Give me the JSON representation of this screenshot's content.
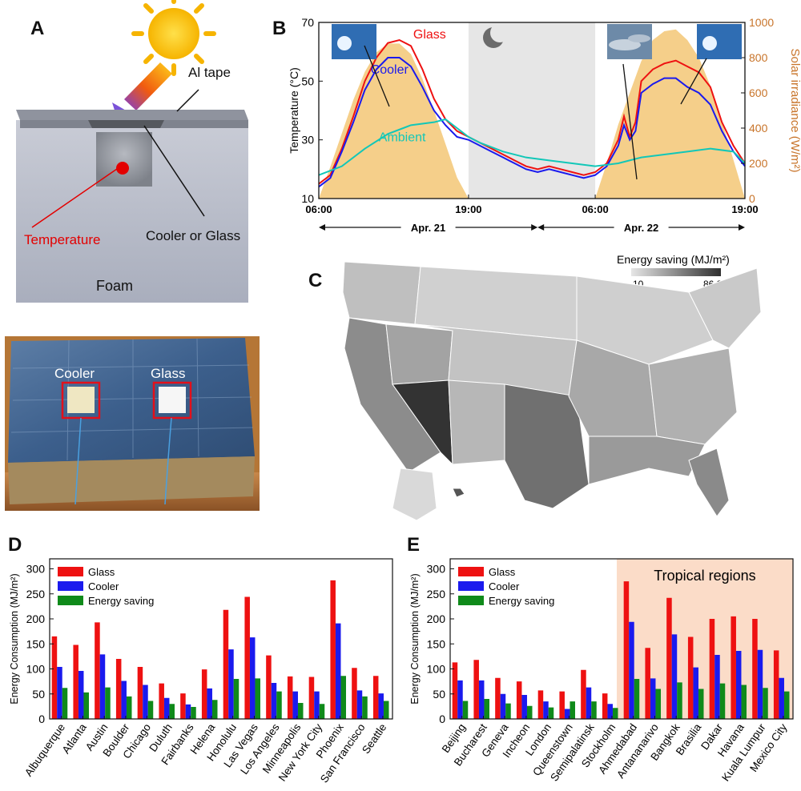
{
  "panel_letters": [
    "A",
    "B",
    "C",
    "D",
    "E"
  ],
  "panel_a": {
    "label_al_tape": "Al tape",
    "label_temperature": "Temperature",
    "label_cooler_or_glass": "Cooler or Glass",
    "label_foam": "Foam",
    "photo_label_cooler": "Cooler",
    "photo_label_glass": "Glass"
  },
  "colors": {
    "glass": "#ee1111",
    "cooler": "#1a1aee",
    "energy_saving": "#0f8a1a",
    "ambient": "#12c7b8",
    "irradiance": "#f5cf8a",
    "irradiance_axis": "#c8742a",
    "night": "#e6e6e6",
    "tropical": "#fbdcc8"
  },
  "chart_data": [
    {
      "type": "line",
      "panel": "B",
      "ylabel": "Temperature (°C)",
      "y2label": "Solar irradiance (W/m²)",
      "ylim": [
        10,
        70
      ],
      "yticks": [
        10,
        30,
        50,
        70
      ],
      "y2lim": [
        0,
        1000
      ],
      "y2ticks": [
        0,
        200,
        400,
        600,
        800,
        1000
      ],
      "xlim": [
        6,
        43
      ],
      "xticks": [
        {
          "x": 6,
          "label": "06:00"
        },
        {
          "x": 19,
          "label": "19:00"
        },
        {
          "x": 30,
          "label": "06:00"
        },
        {
          "x": 43,
          "label": "19:00"
        }
      ],
      "night_shading": [
        19,
        30
      ],
      "day_labels": [
        {
          "label": "Apr. 21",
          "from": 6,
          "to": 25
        },
        {
          "label": "Apr. 22",
          "from": 25,
          "to": 43
        }
      ],
      "series_labels": {
        "glass": "Glass",
        "cooler": "Cooler",
        "ambient": "Ambient"
      },
      "series": [
        {
          "name": "Glass",
          "x": [
            6,
            7,
            8,
            9,
            10,
            11,
            12,
            13,
            14,
            15,
            16,
            17,
            18,
            19,
            20,
            21,
            22,
            23,
            24,
            25,
            26,
            27,
            28,
            29,
            30,
            31,
            32,
            32.5,
            33,
            33.5,
            34,
            35,
            36,
            37,
            38,
            39,
            40,
            41,
            42,
            43
          ],
          "y": [
            15,
            18,
            27,
            38,
            50,
            58,
            63,
            64,
            62,
            54,
            44,
            37,
            33,
            31,
            29,
            27,
            25,
            23,
            21,
            20,
            21,
            20,
            19,
            18,
            19,
            22,
            30,
            38,
            31,
            36,
            50,
            54,
            56,
            57,
            55,
            53,
            48,
            36,
            28,
            22
          ]
        },
        {
          "name": "Cooler",
          "x": [
            6,
            7,
            8,
            9,
            10,
            11,
            12,
            13,
            14,
            15,
            16,
            17,
            18,
            19,
            20,
            21,
            22,
            23,
            24,
            25,
            26,
            27,
            28,
            29,
            30,
            31,
            32,
            32.5,
            33,
            33.5,
            34,
            35,
            36,
            37,
            38,
            39,
            40,
            41,
            42,
            43
          ],
          "y": [
            14,
            17,
            26,
            36,
            47,
            54,
            58,
            58,
            55,
            48,
            40,
            35,
            31,
            30,
            28,
            26,
            24,
            22,
            20,
            19,
            20,
            19,
            18,
            17,
            18,
            21,
            28,
            35,
            30,
            33,
            46,
            49,
            51,
            51,
            48,
            46,
            42,
            33,
            26,
            21
          ]
        },
        {
          "name": "Ambient",
          "x": [
            6,
            8,
            10,
            12,
            14,
            16,
            17,
            18,
            19,
            20,
            22,
            24,
            26,
            28,
            30,
            32,
            34,
            36,
            38,
            40,
            42,
            43
          ],
          "y": [
            18,
            21,
            27,
            32,
            35,
            36,
            37,
            34,
            31,
            29,
            26,
            24,
            23,
            22,
            21,
            22,
            24,
            25,
            26,
            27,
            26,
            22
          ]
        }
      ],
      "irradiance": {
        "name": "Solar irradiance",
        "x": [
          6,
          7,
          8,
          9,
          10,
          11,
          12,
          13,
          14,
          15,
          16,
          17,
          18,
          19,
          30,
          31,
          32,
          33,
          34,
          35,
          36,
          37,
          38,
          39,
          40,
          41,
          42,
          43
        ],
        "y": [
          0,
          180,
          370,
          560,
          720,
          830,
          880,
          880,
          820,
          680,
          500,
          310,
          120,
          0,
          0,
          200,
          420,
          600,
          780,
          900,
          950,
          960,
          900,
          800,
          640,
          440,
          220,
          0
        ]
      }
    },
    {
      "type": "map",
      "panel": "C",
      "legend_title": "Energy saving (MJ/m²)",
      "legend_min": "10",
      "legend_max": "86.3",
      "range": [
        10,
        86.3
      ]
    },
    {
      "type": "bar",
      "panel": "D",
      "ylabel": "Energy Consumption (MJ/m²)",
      "ylim": [
        0,
        320
      ],
      "yticks": [
        0,
        50,
        100,
        150,
        200,
        250,
        300
      ],
      "categories": [
        "Albuquerque",
        "Atlanta",
        "Austin",
        "Boulder",
        "Chicago",
        "Duluth",
        "Fairbanks",
        "Helena",
        "Honolulu",
        "Las Vegas",
        "Los Angeles",
        "Minneapolis",
        "New York City",
        "Phoenix",
        "San Francisco",
        "Seattle"
      ],
      "series": [
        {
          "name": "Glass",
          "values": [
            165,
            148,
            193,
            120,
            104,
            71,
            51,
            99,
            218,
            244,
            127,
            85,
            84,
            277,
            102,
            86
          ]
        },
        {
          "name": "Cooler",
          "values": [
            104,
            96,
            129,
            76,
            68,
            42,
            29,
            61,
            139,
            163,
            72,
            55,
            55,
            191,
            57,
            51
          ]
        },
        {
          "name": "Energy saving",
          "values": [
            62,
            53,
            63,
            45,
            36,
            30,
            24,
            38,
            80,
            81,
            55,
            32,
            30,
            86,
            45,
            36
          ]
        }
      ]
    },
    {
      "type": "bar",
      "panel": "E",
      "ylabel": "Energy Consumption (MJ/m²)",
      "ylim": [
        0,
        320
      ],
      "yticks": [
        0,
        50,
        100,
        150,
        200,
        250,
        300
      ],
      "shaded_region_label": "Tropical regions",
      "shaded_from_index": 8,
      "categories": [
        "Beijing",
        "Bucharest",
        "Geneva",
        "Incheon",
        "London",
        "Queenstown",
        "Semipalatinsk",
        "Stockholm",
        "Ahmedabad",
        "Antananarivo",
        "Bangkok",
        "Brasilia",
        "Dakar",
        "Havana",
        "Kuala Lumpur",
        "Mexico City"
      ],
      "series": [
        {
          "name": "Glass",
          "values": [
            113,
            118,
            82,
            75,
            57,
            55,
            98,
            51,
            275,
            142,
            242,
            164,
            200,
            205,
            200,
            137
          ]
        },
        {
          "name": "Cooler",
          "values": [
            77,
            77,
            50,
            48,
            35,
            20,
            63,
            30,
            194,
            81,
            169,
            103,
            128,
            136,
            138,
            82
          ]
        },
        {
          "name": "Energy saving",
          "values": [
            36,
            40,
            31,
            26,
            23,
            35,
            35,
            22,
            80,
            60,
            73,
            60,
            71,
            68,
            62,
            55
          ]
        }
      ]
    }
  ]
}
